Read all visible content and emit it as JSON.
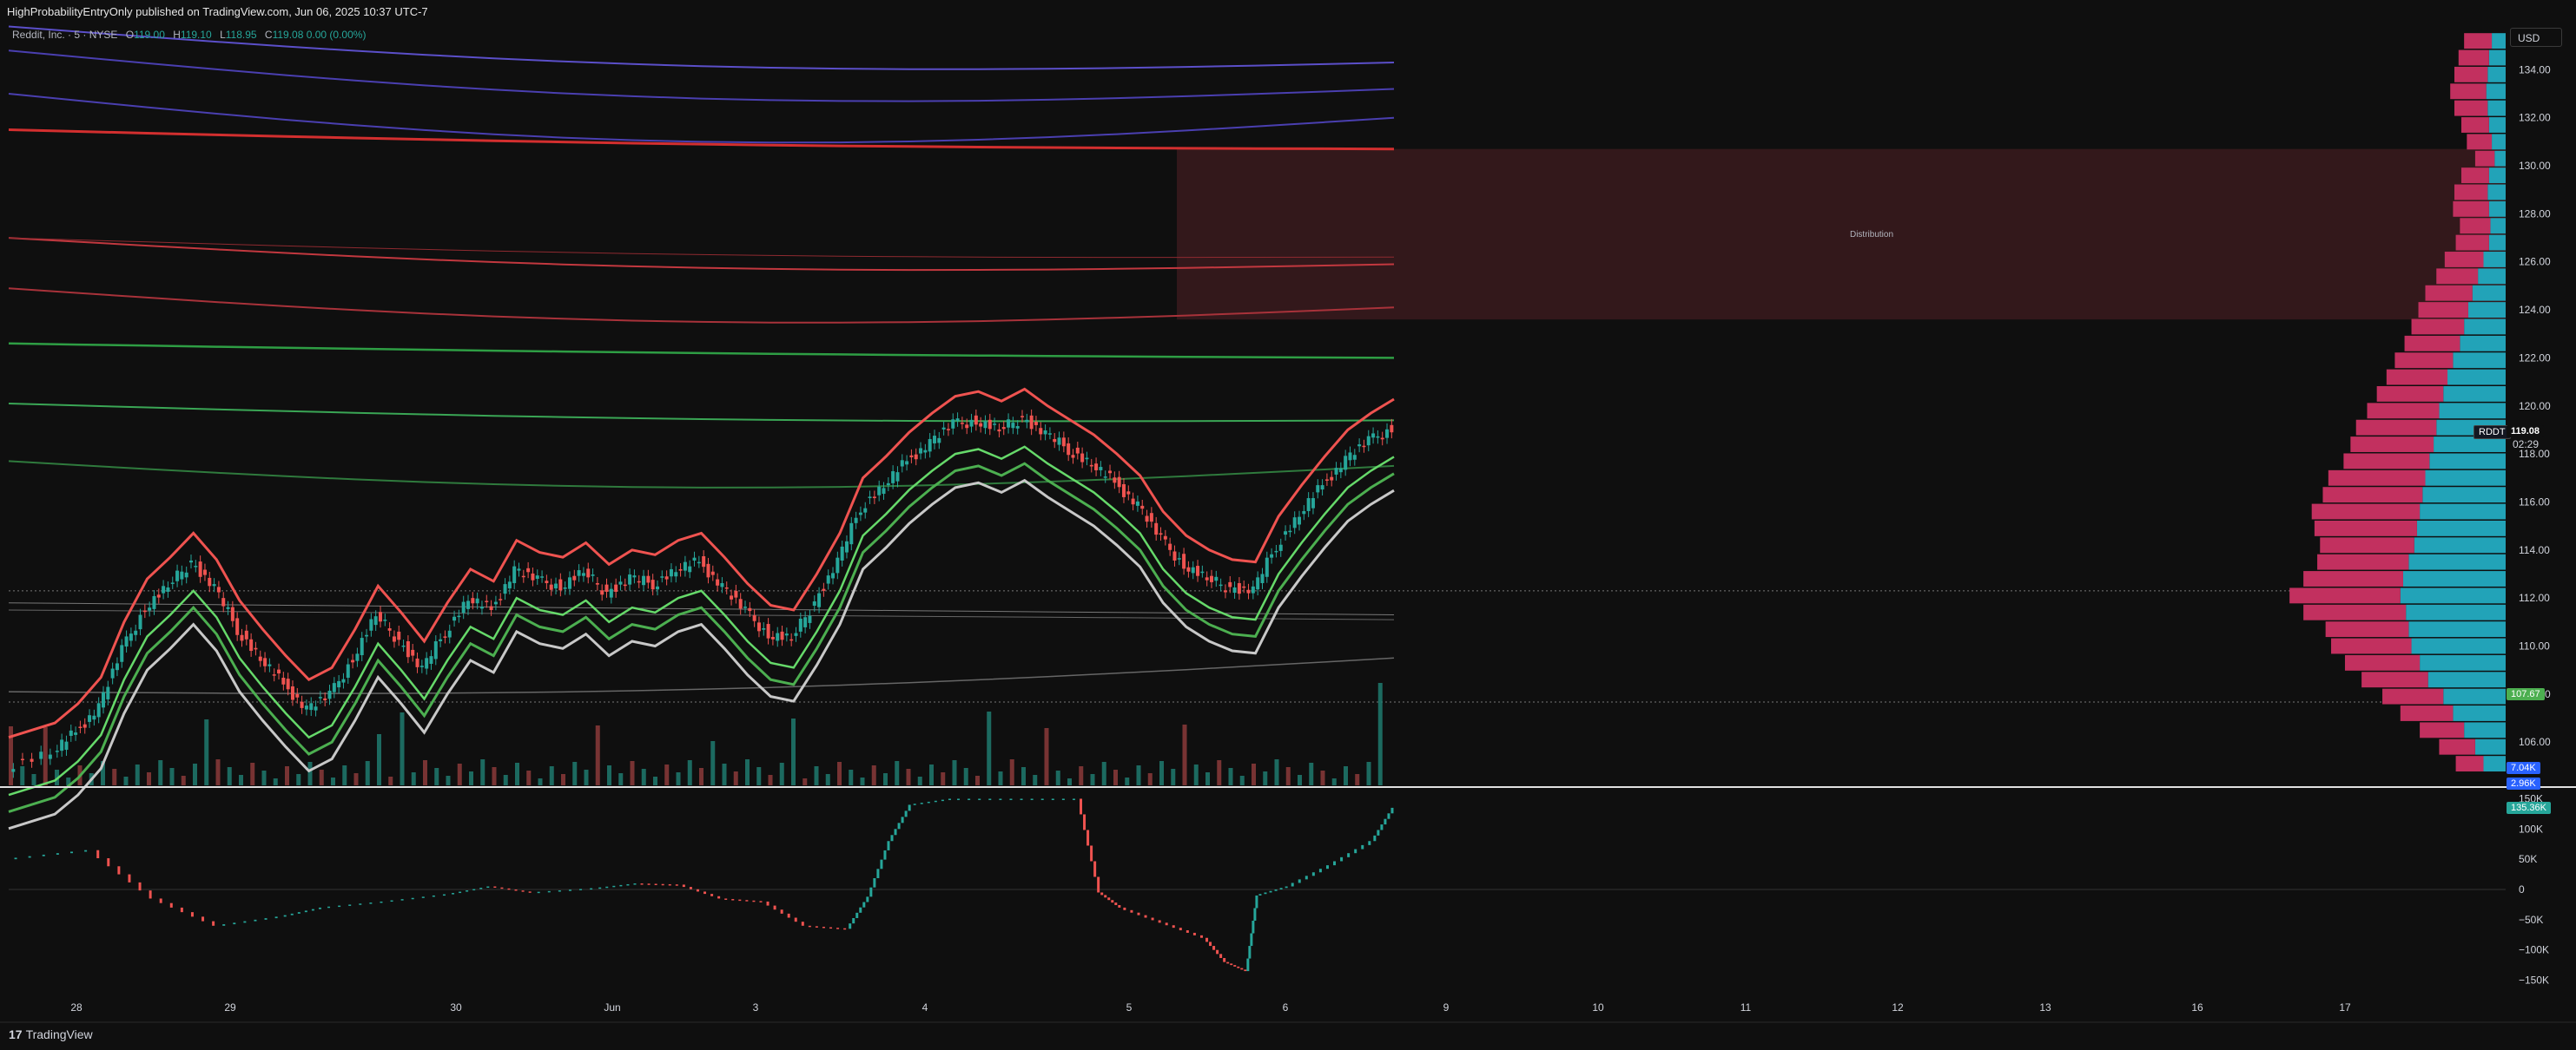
{
  "header": {
    "published": "HighProbabilityEntryOnly published on TradingView.com, Jun 06, 2025 10:37 UTC-7"
  },
  "legend": {
    "symbol": "Reddit, Inc. · 5 · NYSE",
    "o_label": "O",
    "o": "119.00",
    "h_label": "H",
    "h": "119.10",
    "l_label": "L",
    "l": "118.95",
    "c_label": "C",
    "c": "119.08",
    "change": "0.00 (0.00%)"
  },
  "currency": "USD",
  "brand": {
    "logo": "17",
    "name": "TradingView"
  },
  "chart_data": [
    {
      "type": "candlestick",
      "symbol_tag": "RDDT",
      "last_price": "119.08",
      "countdown": "02:29",
      "marker_price": "107.67",
      "zone": {
        "label": "Distribution",
        "low": 123.6,
        "high": 130.7
      },
      "y_ticks": [
        "134.00",
        "132.00",
        "130.00",
        "128.00",
        "126.00",
        "124.00",
        "122.00",
        "120.00",
        "118.00",
        "116.00",
        "114.00",
        "112.00",
        "110.00",
        "108.00",
        "106.00"
      ],
      "ylim": [
        104.2,
        136.0
      ],
      "x_ticks": [
        "28",
        "29",
        "30",
        "Jun",
        "3",
        "4",
        "5",
        "6",
        "9",
        "10",
        "11",
        "12",
        "13",
        "16",
        "17"
      ],
      "price_path": [
        [
          0,
          105.0
        ],
        [
          2,
          105.6
        ],
        [
          3,
          106.4
        ],
        [
          4,
          107.5
        ],
        [
          5,
          109.8
        ],
        [
          6,
          111.6
        ],
        [
          7,
          112.5
        ],
        [
          8,
          113.5
        ],
        [
          9,
          112.4
        ],
        [
          10,
          110.7
        ],
        [
          11,
          109.5
        ],
        [
          12,
          108.4
        ],
        [
          13,
          107.4
        ],
        [
          14,
          107.9
        ],
        [
          15,
          109.5
        ],
        [
          16,
          111.3
        ],
        [
          17,
          110.2
        ],
        [
          18,
          109.0
        ],
        [
          19,
          110.6
        ],
        [
          20,
          112.0
        ],
        [
          21,
          111.5
        ],
        [
          22,
          113.2
        ],
        [
          23,
          112.7
        ],
        [
          24,
          112.5
        ],
        [
          25,
          113.1
        ],
        [
          26,
          112.2
        ],
        [
          27,
          112.8
        ],
        [
          28,
          112.6
        ],
        [
          29,
          113.2
        ],
        [
          30,
          113.5
        ],
        [
          31,
          112.5
        ],
        [
          32,
          111.4
        ],
        [
          33,
          110.5
        ],
        [
          34,
          110.3
        ],
        [
          35,
          111.8
        ],
        [
          36,
          113.5
        ],
        [
          37,
          115.8
        ],
        [
          38,
          116.7
        ],
        [
          39,
          117.7
        ],
        [
          40,
          118.5
        ],
        [
          41,
          119.2
        ],
        [
          42,
          119.4
        ],
        [
          43,
          119.0
        ],
        [
          44,
          119.5
        ],
        [
          45,
          118.8
        ],
        [
          46,
          118.2
        ],
        [
          47,
          117.6
        ],
        [
          48,
          116.8
        ],
        [
          49,
          115.9
        ],
        [
          50,
          114.4
        ],
        [
          51,
          113.4
        ],
        [
          52,
          112.8
        ],
        [
          53,
          112.4
        ],
        [
          54,
          112.3
        ],
        [
          55,
          114.2
        ],
        [
          56,
          115.5
        ],
        [
          57,
          116.7
        ],
        [
          58,
          117.8
        ],
        [
          59,
          118.5
        ],
        [
          60,
          119.08
        ]
      ],
      "volume_ticks": [
        "7.04K",
        "2.96K"
      ],
      "profile": {
        "bins": [
          135.2,
          134.5,
          133.8,
          133.1,
          132.4,
          131.7,
          131.0,
          130.3,
          129.6,
          128.9,
          128.2,
          127.5,
          126.8,
          126.1,
          125.4,
          124.7,
          124.0,
          123.3,
          122.6,
          121.9,
          121.2,
          120.5,
          119.8,
          119.1,
          118.4,
          117.7,
          117.0,
          116.3,
          115.6,
          114.9,
          114.2,
          113.5,
          112.8,
          112.1,
          111.4,
          110.7,
          110.0,
          109.3,
          108.6,
          107.9,
          107.2,
          106.5,
          105.8,
          105.1
        ],
        "buy": [
          0.1,
          0.12,
          0.13,
          0.14,
          0.13,
          0.12,
          0.1,
          0.08,
          0.12,
          0.13,
          0.12,
          0.11,
          0.12,
          0.16,
          0.2,
          0.24,
          0.27,
          0.3,
          0.33,
          0.38,
          0.42,
          0.45,
          0.48,
          0.5,
          0.52,
          0.55,
          0.58,
          0.6,
          0.62,
          0.64,
          0.66,
          0.7,
          0.74,
          0.76,
          0.72,
          0.7,
          0.68,
          0.62,
          0.56,
          0.45,
          0.38,
          0.3,
          0.22,
          0.16
        ],
        "sell": [
          0.2,
          0.22,
          0.24,
          0.26,
          0.24,
          0.2,
          0.18,
          0.14,
          0.2,
          0.24,
          0.26,
          0.22,
          0.24,
          0.28,
          0.3,
          0.34,
          0.36,
          0.38,
          0.4,
          0.42,
          0.44,
          0.48,
          0.52,
          0.58,
          0.6,
          0.62,
          0.7,
          0.72,
          0.78,
          0.74,
          0.68,
          0.66,
          0.72,
          0.8,
          0.74,
          0.6,
          0.58,
          0.54,
          0.48,
          0.44,
          0.38,
          0.32,
          0.26,
          0.2
        ]
      }
    },
    {
      "type": "line",
      "name": "cumulative delta",
      "last_value": "135.36K",
      "y_ticks": [
        "150K",
        "100K",
        "50K",
        "0",
        "−50K",
        "−100K",
        "−150K"
      ],
      "ylim": [
        -165,
        165
      ],
      "values": [
        [
          0,
          50
        ],
        [
          4,
          65
        ],
        [
          7,
          -15
        ],
        [
          10,
          -60
        ],
        [
          13,
          -45
        ],
        [
          15,
          -30
        ],
        [
          18,
          -20
        ],
        [
          21,
          -8
        ],
        [
          23,
          5
        ],
        [
          25,
          -5
        ],
        [
          28,
          2
        ],
        [
          30,
          10
        ],
        [
          32,
          8
        ],
        [
          34,
          -15
        ],
        [
          36,
          -20
        ],
        [
          38,
          -60
        ],
        [
          40,
          -65
        ],
        [
          41,
          -12
        ],
        [
          42,
          80
        ],
        [
          43,
          140
        ],
        [
          45,
          150
        ],
        [
          48,
          150
        ],
        [
          51,
          150
        ],
        [
          52,
          -5
        ],
        [
          53,
          -30
        ],
        [
          55,
          -55
        ],
        [
          57,
          -80
        ],
        [
          58,
          -120
        ],
        [
          59,
          -135
        ],
        [
          59.5,
          -10
        ],
        [
          61,
          5
        ],
        [
          63,
          40
        ],
        [
          65,
          80
        ],
        [
          66,
          135
        ]
      ]
    }
  ]
}
